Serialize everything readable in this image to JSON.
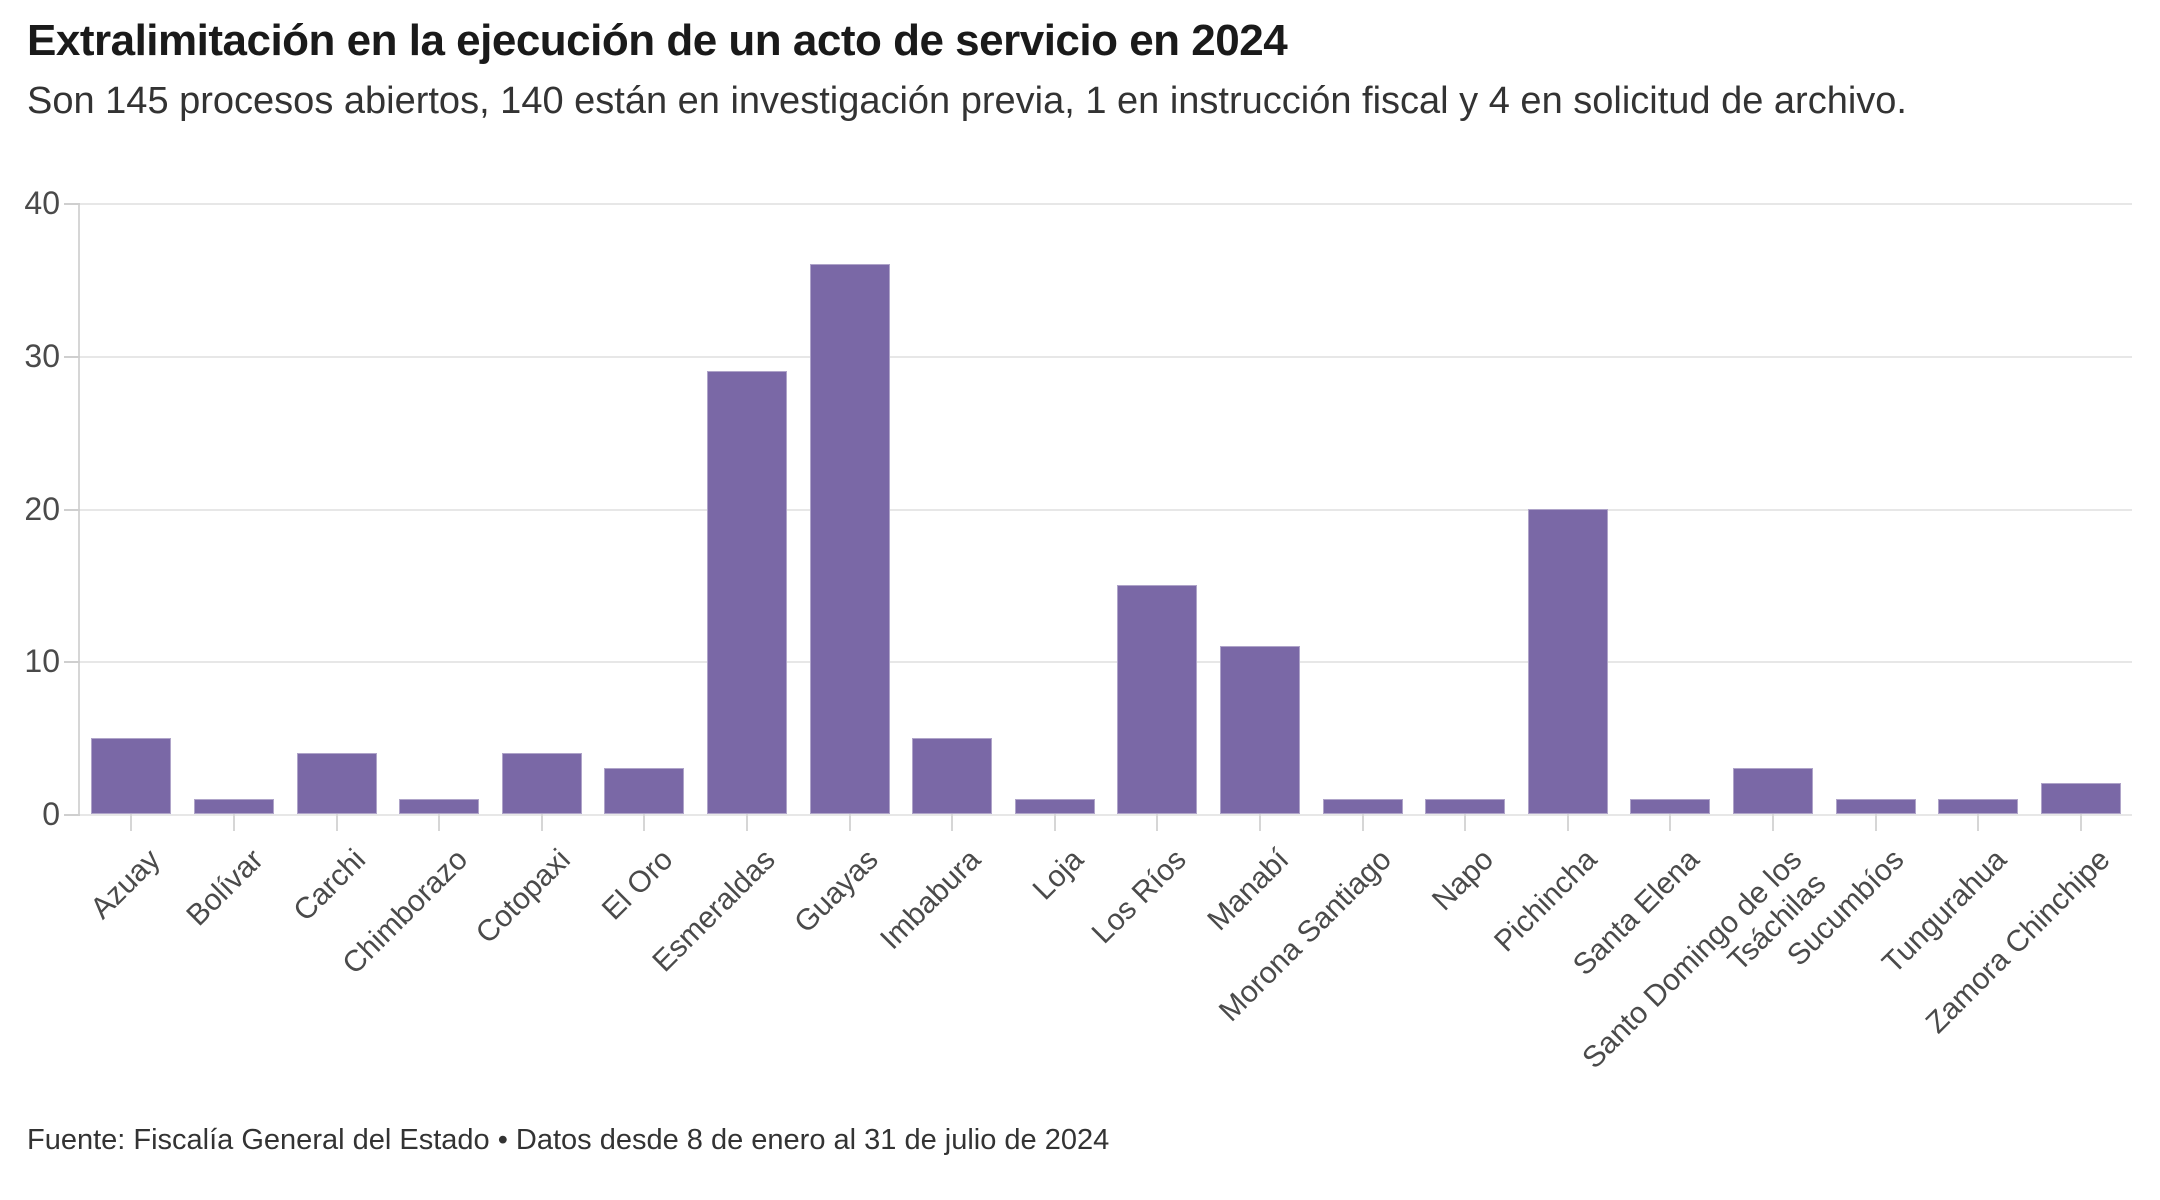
{
  "page": {
    "title": "Extralimitación en la ejecución de un acto de servicio en 2024",
    "subtitle": "Son 145 procesos abiertos, 140 están en investigación previa, 1 en instrucción fiscal y 4 en solicitud de archivo.",
    "source": "Fuente: Fiscalía General del Estado • Datos desde 8 de enero al 31 de julio de 2024"
  },
  "colors": {
    "bar": "#7a68a6",
    "title_text": "#1a1a1a",
    "body_text": "#333333",
    "axis_label": "#4a4a4a",
    "gridline": "#e7e7e7",
    "axis_line": "#cfcfcf",
    "background": "#ffffff"
  },
  "chart_data": {
    "type": "bar",
    "title": "Extralimitación en la ejecución de un acto de servicio en 2024",
    "subtitle": "Son 145 procesos abiertos, 140 están en investigación previa, 1 en instrucción fiscal y 4 en solicitud de archivo.",
    "source": "Fuente: Fiscalía General del Estado • Datos desde 8 de enero al 31 de julio de 2024",
    "categories": [
      "Azuay",
      "Bolívar",
      "Carchi",
      "Chimborazo",
      "Cotopaxi",
      "El Oro",
      "Esmeraldas",
      "Guayas",
      "Imbabura",
      "Loja",
      "Los Ríos",
      "Manabí",
      "Morona Santiago",
      "Napo",
      "Pichincha",
      "Santa Elena",
      "Santo Domingo de los Tsáchilas",
      "Sucumbíos",
      "Tungurahua",
      "Zamora Chinchipe"
    ],
    "values": [
      5,
      1,
      4,
      1,
      4,
      3,
      29,
      36,
      5,
      1,
      15,
      11,
      1,
      1,
      20,
      1,
      3,
      1,
      1,
      2
    ],
    "total": 145,
    "xlabel": "",
    "ylabel": "",
    "ylim": [
      0,
      40
    ],
    "yticks": [
      0,
      10,
      20,
      30,
      40
    ],
    "grid": "horizontal",
    "legend": "none",
    "bar_color": "#7a68a6",
    "x_label_rotation": -45
  }
}
